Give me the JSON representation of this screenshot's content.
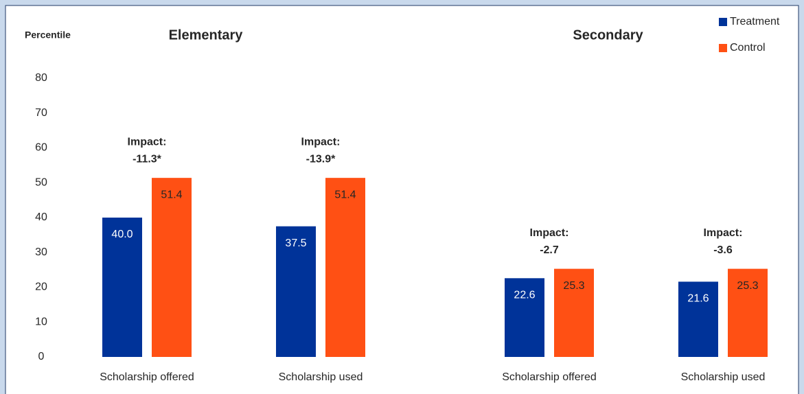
{
  "chart_data": {
    "type": "bar",
    "y_label": "Percentile",
    "panel_titles": [
      "Elementary",
      "Secondary"
    ],
    "categories": [
      "Scholarship offered",
      "Scholarship used",
      "Scholarship offered",
      "Scholarship used"
    ],
    "series": [
      {
        "name": "Treatment",
        "color": "#003399",
        "values": [
          40.0,
          37.5,
          22.6,
          21.6
        ],
        "value_labels": [
          "40.0",
          "37.5",
          "22.6",
          "21.6"
        ]
      },
      {
        "name": "Control",
        "color": "#ff5014",
        "values": [
          51.4,
          51.4,
          25.3,
          25.3
        ]
      }
    ],
    "annotations": [
      {
        "label": "Impact:",
        "value": "-11.3*"
      },
      {
        "label": "Impact:",
        "value": "-13.9*"
      },
      {
        "label": "Impact:",
        "value": "-2.7"
      },
      {
        "label": "Impact:",
        "value": "-3.6"
      }
    ],
    "ylim": [
      0,
      80
    ],
    "yticks": [
      0,
      10,
      20,
      30,
      40,
      50,
      60,
      70,
      80
    ],
    "grid": false,
    "legend_position": "top-right"
  }
}
